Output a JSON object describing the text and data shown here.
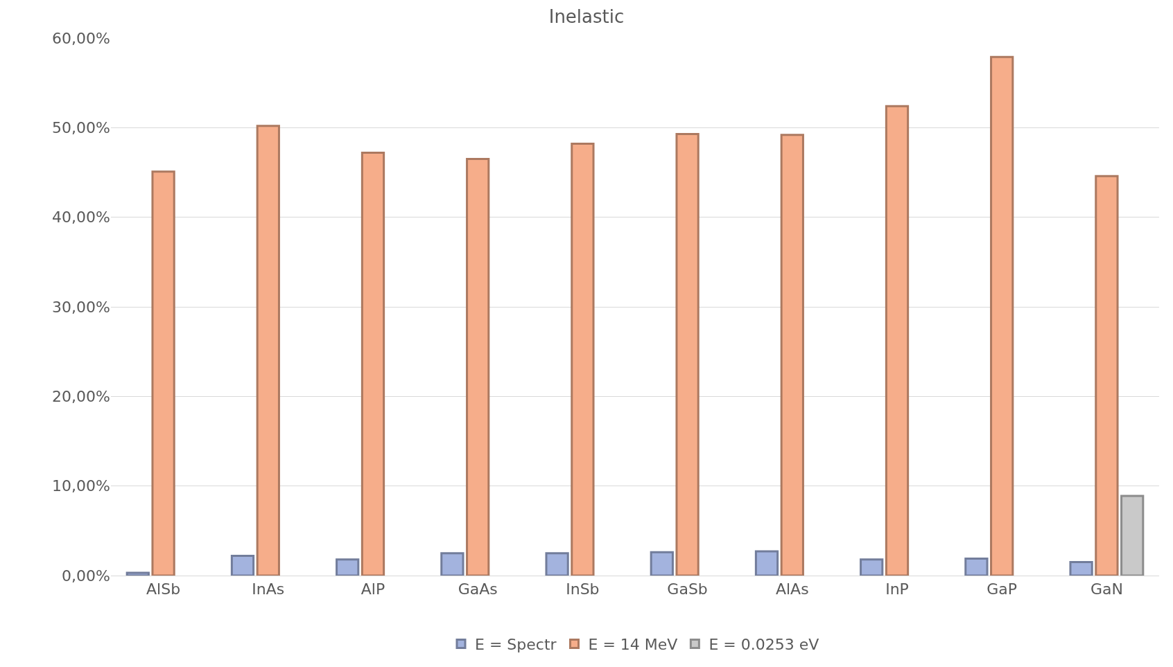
{
  "chart_data": {
    "type": "bar",
    "title": "Inelastic",
    "categories": [
      "AlSb",
      "InAs",
      "AlP",
      "GaAs",
      "InSb",
      "GaSb",
      "AlAs",
      "InP",
      "GaP",
      "GaN"
    ],
    "series": [
      {
        "name": "E = Spectr",
        "color": "#a3b3de",
        "values": [
          0.3,
          2.2,
          1.8,
          2.5,
          2.5,
          2.6,
          2.7,
          1.8,
          1.9,
          1.5
        ]
      },
      {
        "name": "E = 14 MeV",
        "color": "#f6ad8a",
        "values": [
          45.1,
          50.2,
          47.2,
          46.5,
          48.2,
          49.3,
          49.2,
          52.4,
          57.9,
          44.6
        ]
      },
      {
        "name": "E = 0.0253 eV",
        "color": "#c9c9c9",
        "values": [
          null,
          null,
          null,
          null,
          null,
          null,
          null,
          null,
          null,
          8.9
        ]
      }
    ],
    "ylim": [
      0,
      60
    ],
    "yticks": [
      {
        "value": 0,
        "label": "0,00%"
      },
      {
        "value": 10,
        "label": "10,00%"
      },
      {
        "value": 20,
        "label": "20,00%"
      },
      {
        "value": 30,
        "label": "30,00%"
      },
      {
        "value": 40,
        "label": "40,00%"
      },
      {
        "value": 50,
        "label": "50,00%"
      },
      {
        "value": 60,
        "label": "60,00%"
      }
    ],
    "grid": "y",
    "legend": "bottom"
  }
}
